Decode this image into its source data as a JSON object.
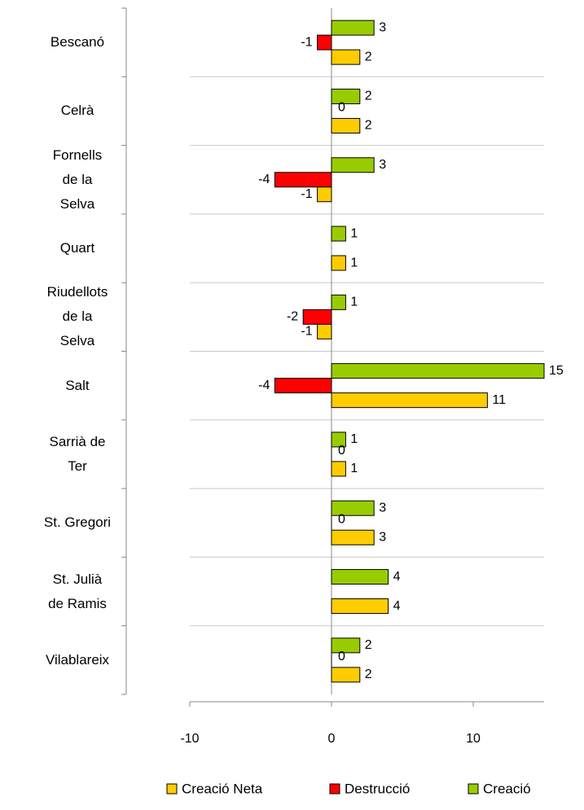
{
  "chart_data": {
    "type": "bar",
    "orientation": "horizontal",
    "categories": [
      "Bescanó",
      "Celrà",
      "Fornells de la Selva",
      "Quart",
      "Riudellots de la Selva",
      "Salt",
      "Sarrià de Ter",
      "St. Gregori",
      "St. Julià de Ramis",
      "Vilablareix"
    ],
    "series": [
      {
        "name": "Creació",
        "color": "#99cc00",
        "values": [
          3,
          2,
          3,
          1,
          1,
          15,
          1,
          3,
          4,
          2
        ]
      },
      {
        "name": "Destrucció",
        "color": "#ff0000",
        "values": [
          -1,
          0,
          -4,
          null,
          -2,
          -4,
          0,
          0,
          null,
          0
        ]
      },
      {
        "name": "Creació Neta",
        "color": "#ffcc00",
        "values": [
          2,
          2,
          -1,
          1,
          -1,
          11,
          1,
          3,
          4,
          2
        ]
      }
    ],
    "legend_order": [
      "Creació Neta",
      "Destrucció",
      "Creació"
    ],
    "xlim": [
      -10,
      15
    ],
    "xticks": [
      -10,
      0,
      10
    ],
    "grid": true
  }
}
